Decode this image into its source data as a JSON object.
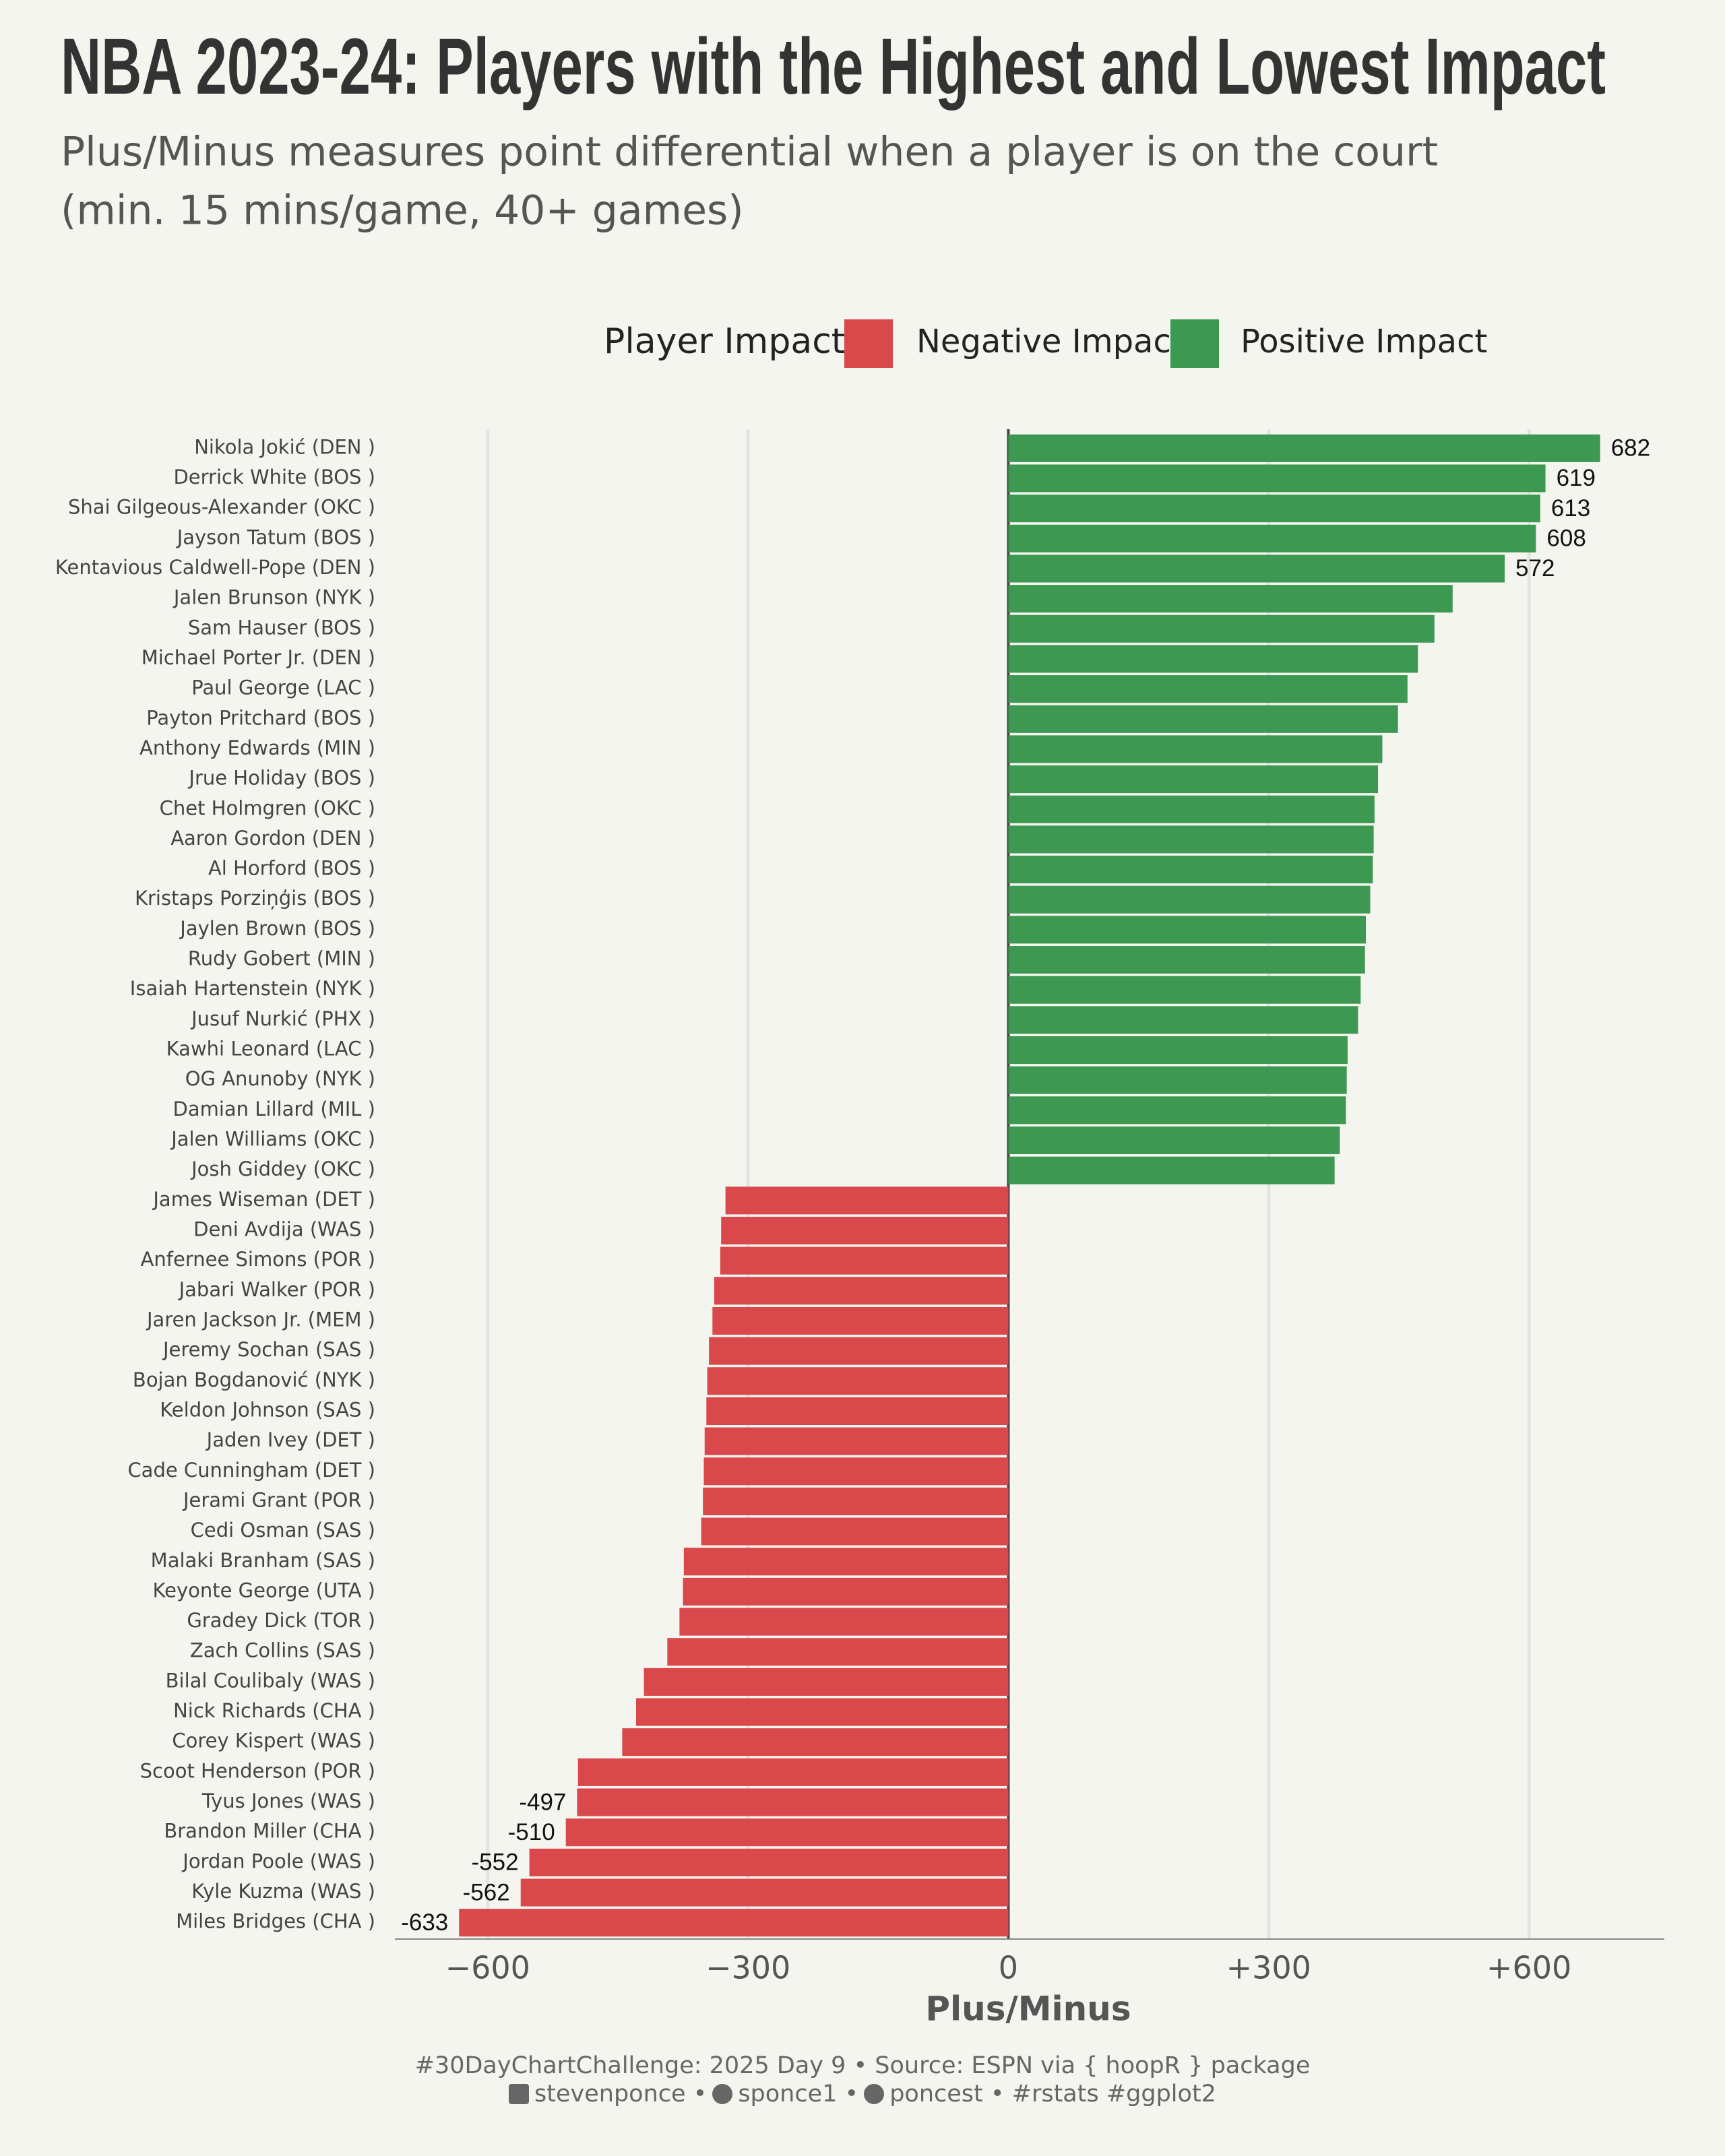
{
  "chart_data": {
    "type": "bar",
    "orientation": "horizontal",
    "title": "NBA 2023-24: Players with the Highest and Lowest Impact",
    "subtitle": [
      "Plus/Minus measures point differential when a player is on the court",
      "(min. 15 mins/game, 40+ games)"
    ],
    "legend_title": "Player Impact",
    "x_label": "Plus/Minus",
    "categories": [
      "Nikola Jokić (DEN )",
      "Derrick White (BOS )",
      "Shai Gilgeous-Alexander (OKC )",
      "Jayson Tatum (BOS )",
      "Kentavious Caldwell-Pope (DEN )",
      "Jalen Brunson (NYK )",
      "Sam Hauser (BOS )",
      "Michael Porter Jr. (DEN )",
      "Paul George (LAC )",
      "Payton Pritchard (BOS )",
      "Anthony Edwards (MIN )",
      "Jrue Holiday (BOS )",
      "Chet Holmgren (OKC )",
      "Aaron Gordon (DEN )",
      "Al Horford (BOS )",
      "Kristaps Porziņģis (BOS )",
      "Jaylen Brown (BOS )",
      "Rudy Gobert (MIN )",
      "Isaiah Hartenstein (NYK )",
      "Jusuf Nurkić (PHX )",
      "Kawhi Leonard (LAC )",
      "OG Anunoby (NYK )",
      "Damian Lillard (MIL )",
      "Jalen Williams (OKC )",
      "Josh Giddey (OKC )",
      "James Wiseman (DET )",
      "Deni Avdija (WAS )",
      "Anfernee Simons (POR )",
      "Jabari Walker (POR )",
      "Jaren Jackson Jr. (MEM )",
      "Jeremy Sochan (SAS )",
      "Bojan Bogdanović (NYK )",
      "Keldon Johnson (SAS )",
      "Jaden Ivey (DET )",
      "Cade Cunningham (DET )",
      "Jerami Grant (POR )",
      "Cedi Osman (SAS )",
      "Malaki Branham (SAS )",
      "Keyonte George (UTA )",
      "Gradey Dick (TOR )",
      "Zach Collins (SAS )",
      "Bilal Coulibaly (WAS )",
      "Nick Richards (CHA )",
      "Corey Kispert (WAS )",
      "Scoot Henderson (POR )",
      "Tyus Jones (WAS )",
      "Brandon Miller (CHA )",
      "Jordan Poole (WAS )",
      "Kyle Kuzma (WAS )",
      "Miles Bridges (CHA )"
    ],
    "series": [
      {
        "name": "Negative Impact",
        "color": "#d9484b",
        "values": [
          null,
          null,
          null,
          null,
          null,
          null,
          null,
          null,
          null,
          null,
          null,
          null,
          null,
          null,
          null,
          null,
          null,
          null,
          null,
          null,
          null,
          null,
          null,
          null,
          null,
          -326,
          -331,
          -332,
          -339,
          -341,
          -345,
          -347,
          -348,
          -350,
          -351,
          -352,
          -354,
          -374,
          -375,
          -379,
          -393,
          -420,
          -429,
          -445,
          -496,
          -497,
          -510,
          -552,
          -562,
          -633
        ],
        "value_labels": [
          null,
          null,
          null,
          null,
          null,
          null,
          null,
          null,
          null,
          null,
          null,
          null,
          null,
          null,
          null,
          null,
          null,
          null,
          null,
          null,
          null,
          null,
          null,
          null,
          null,
          null,
          null,
          null,
          null,
          null,
          null,
          null,
          null,
          null,
          null,
          null,
          null,
          null,
          null,
          null,
          null,
          null,
          null,
          null,
          null,
          "-497",
          "-510",
          "-552",
          "-562",
          "-633"
        ]
      },
      {
        "name": "Positive Impact",
        "color": "#3d9951",
        "values": [
          682,
          619,
          613,
          608,
          572,
          512,
          491,
          472,
          460,
          449,
          431,
          426,
          422,
          421,
          420,
          417,
          412,
          411,
          406,
          403,
          391,
          390,
          389,
          382,
          376,
          null,
          null,
          null,
          null,
          null,
          null,
          null,
          null,
          null,
          null,
          null,
          null,
          null,
          null,
          null,
          null,
          null,
          null,
          null,
          null,
          null,
          null,
          null,
          null,
          null
        ],
        "value_labels": [
          "682",
          "619",
          "613",
          "608",
          "572",
          null,
          null,
          null,
          null,
          null,
          null,
          null,
          null,
          null,
          null,
          null,
          null,
          null,
          null,
          null,
          null,
          null,
          null,
          null,
          null,
          null,
          null,
          null,
          null,
          null,
          null,
          null,
          null,
          null,
          null,
          null,
          null,
          null,
          null,
          null,
          null,
          null,
          null,
          null,
          null,
          null,
          null,
          null,
          null,
          null
        ]
      }
    ],
    "xlim": [
      -707,
      756
    ],
    "xticks": [
      {
        "value": -600,
        "label": "−600"
      },
      {
        "value": -300,
        "label": "−300"
      },
      0,
      {
        "value": 300,
        "label": "+300"
      },
      {
        "value": 600,
        "label": "+600"
      }
    ],
    "grid": true,
    "legend_position": "top",
    "caption": [
      "#30DayChartChallenge: 2025 Day 9 • Source: ESPN via { hoopR } package",
      "stevenponce •",
      "sponce1 •",
      "poncest • #rstats #ggplot2"
    ]
  }
}
